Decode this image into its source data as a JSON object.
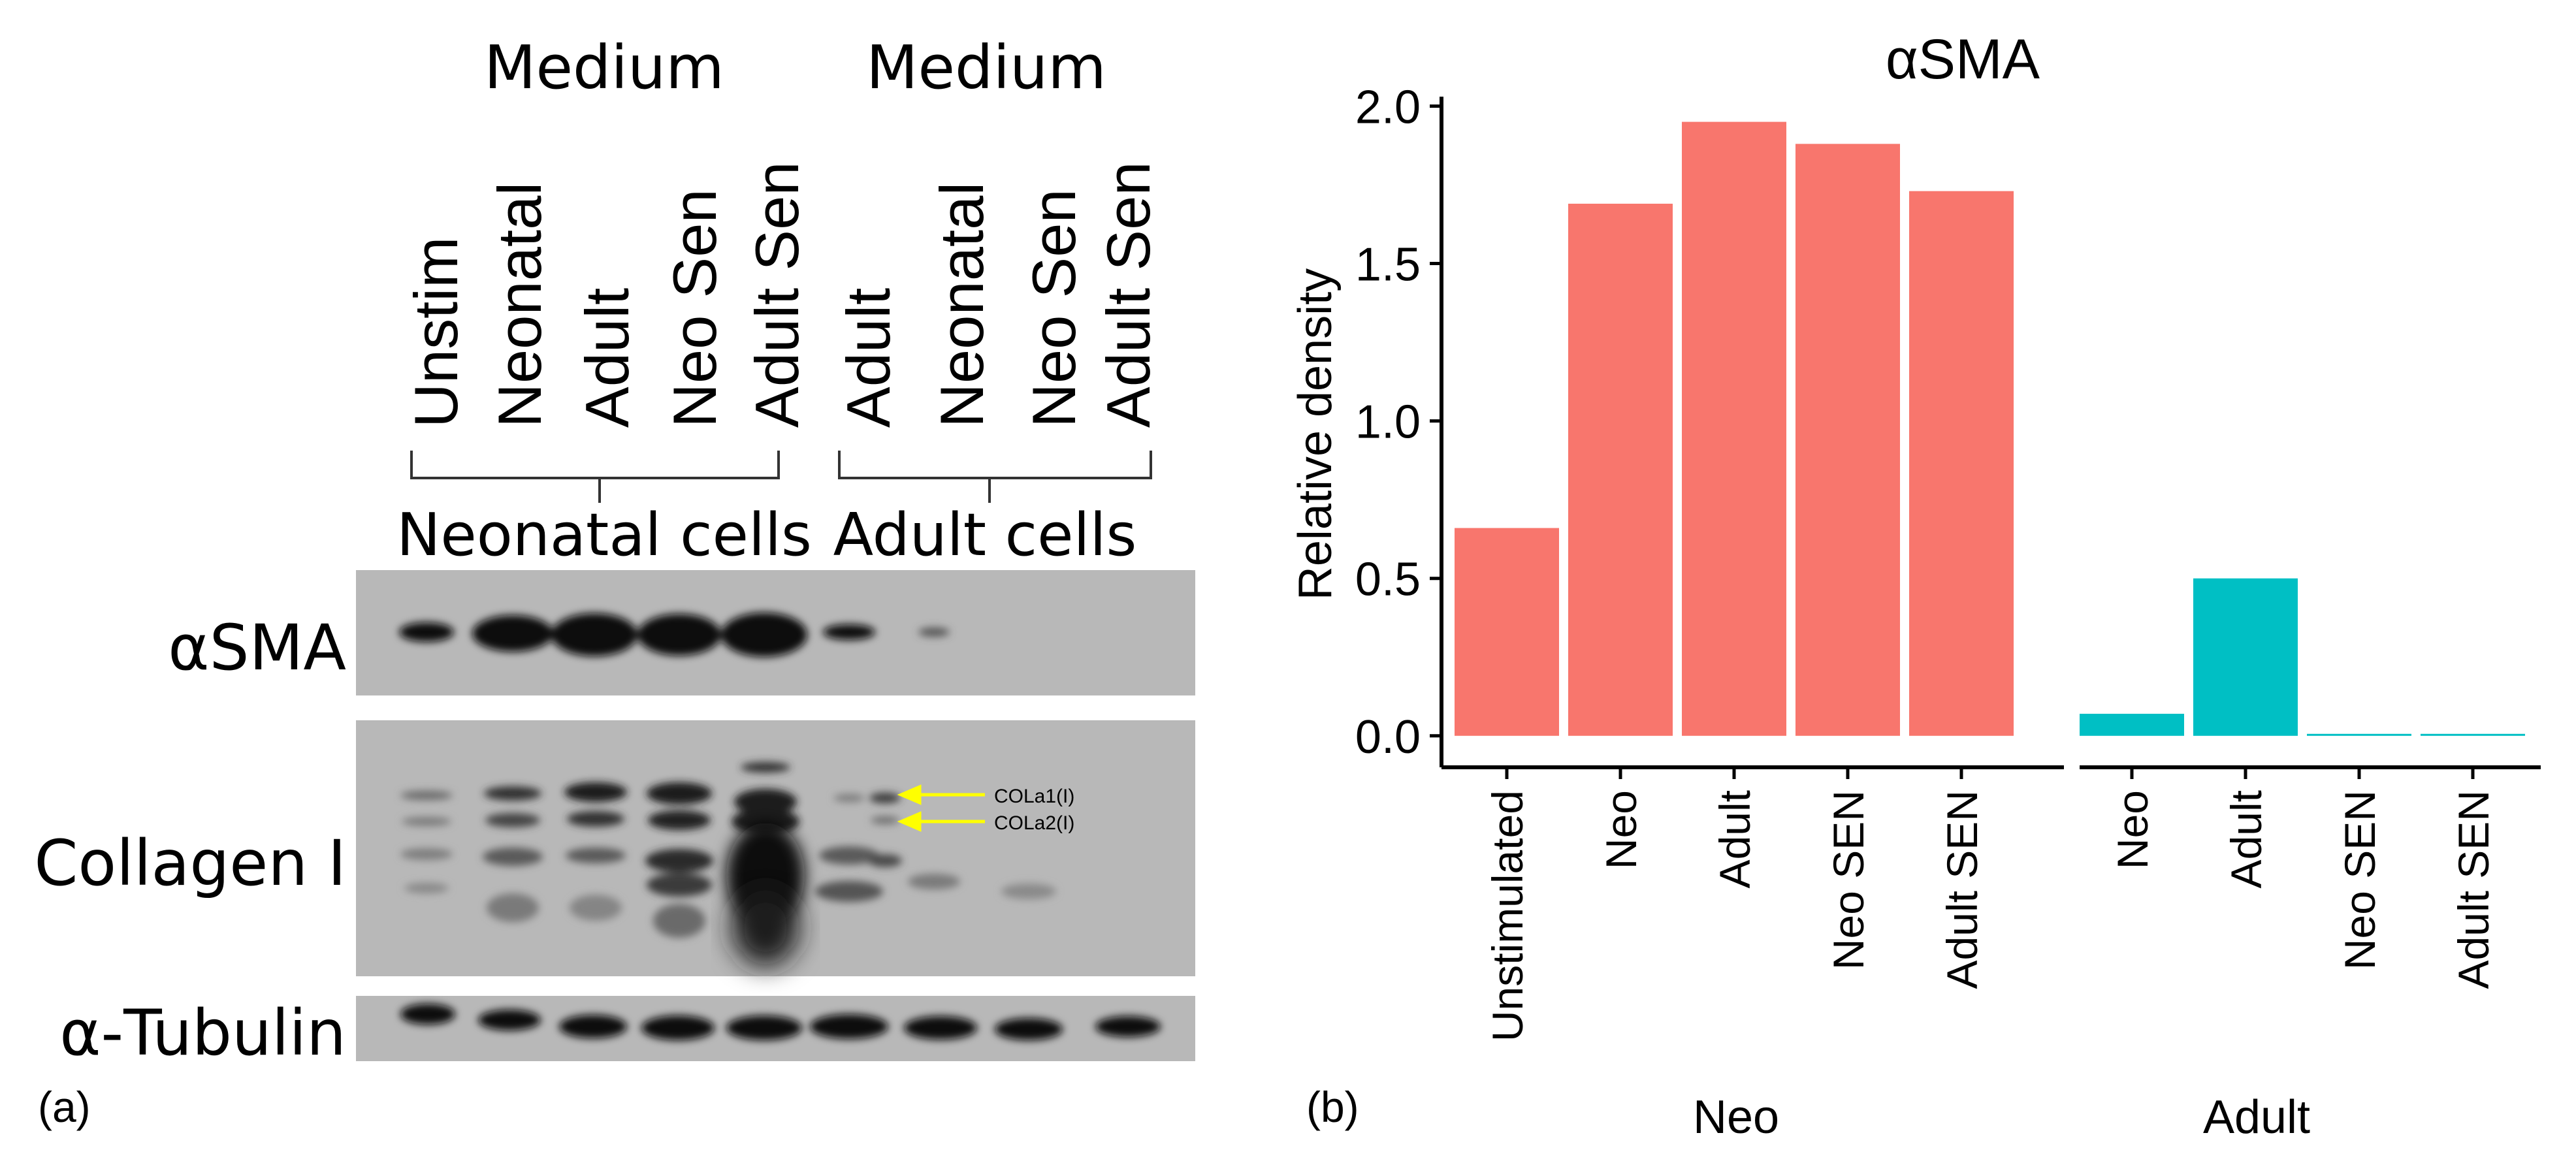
{
  "panel_a": {
    "label": "(a)",
    "medium_headers": [
      "Medium",
      "Medium"
    ],
    "neonatal_lanes": [
      "Unstim",
      "Neonatal",
      "Adult",
      "Neo Sen",
      "Adult Sen"
    ],
    "adult_lanes": [
      "Adult",
      "Neonatal",
      "Neo Sen",
      "Adult Sen"
    ],
    "group_labels": [
      "Neonatal cells",
      "Adult cells"
    ],
    "blot_labels": [
      "αSMA",
      "Collagen I",
      "α-Tubulin"
    ],
    "band_annotations": [
      "COLa1(I)",
      "COLa2(I)"
    ],
    "colors": {
      "annotation_arrow": "#ffff00",
      "blot_background": "#b8b8b8",
      "band": "#0a0a0a"
    }
  },
  "panel_b": {
    "label": "(b)",
    "colors": {
      "neo": "#f8766d",
      "adult": "#00bfc4"
    }
  },
  "chart_data": {
    "type": "bar",
    "title": "αSMA",
    "ylabel": "Relative density",
    "xlabel": "",
    "ylim": [
      -0.1,
      2.03
    ],
    "yticks": [
      0.0,
      0.5,
      1.0,
      1.5,
      2.0
    ],
    "ytick_labels": [
      "0.0",
      "0.5",
      "1.0",
      "1.5",
      "2.0"
    ],
    "grid": false,
    "facets": [
      {
        "name": "Neo",
        "color": "#f8766d",
        "categories": [
          "Unstimulated",
          "Neo",
          "Adult",
          "Neo SEN",
          "Adult SEN"
        ],
        "values": [
          0.66,
          1.69,
          1.95,
          1.88,
          1.73
        ]
      },
      {
        "name": "Adult",
        "color": "#00bfc4",
        "categories": [
          "Neo",
          "Adult",
          "Neo SEN",
          "Adult SEN"
        ],
        "values": [
          0.07,
          0.5,
          0.005,
          0.003
        ]
      }
    ]
  }
}
